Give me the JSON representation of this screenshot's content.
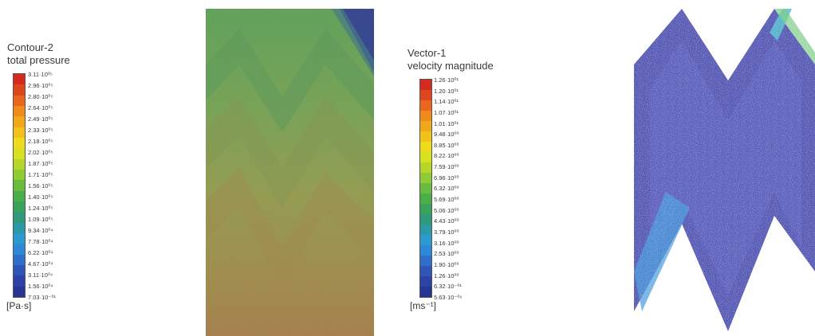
{
  "pressure_legend": {
    "title_line1": "Contour-2",
    "title_line2": "total pressure",
    "unit": "[Pa·s]",
    "ticks": [
      "3.11·10⁰⁵",
      "2.96·10⁰⁵",
      "2.80·10⁰⁵",
      "2.64·10⁰⁵",
      "2.49·10⁰⁵",
      "2.33·10⁰⁵",
      "2.18·10⁰⁵",
      "2.02·10⁰⁵",
      "1.87·10⁰⁵",
      "1.71·10⁰⁵",
      "1.56·10⁰⁵",
      "1.40·10⁰⁵",
      "1.24·10⁰⁵",
      "1.09·10⁰⁵",
      "9.34·10⁰⁴",
      "7.78·10⁰⁴",
      "6.22·10⁰⁴",
      "4.67·10⁰⁴",
      "3.11·10⁰⁴",
      "1.56·10⁰⁴",
      "7.03·10⁻⁰¹"
    ],
    "colors": [
      "#d62a1e",
      "#e0461e",
      "#e9661c",
      "#f08a1a",
      "#f2a61a",
      "#f2c21b",
      "#eedb1d",
      "#d8e11f",
      "#b6d72a",
      "#8fcb34",
      "#69bd3e",
      "#4aaf49",
      "#3aa35a",
      "#2f9a7a",
      "#2a99a8",
      "#2a9ad0",
      "#2c89d8",
      "#2f6fcc",
      "#2f56b8",
      "#2c42a8",
      "#263694"
    ]
  },
  "velocity_legend": {
    "title_line1": "Vector-1",
    "title_line2": "velocity magnitude",
    "unit": "[ms⁻¹]",
    "ticks": [
      "1.26·10⁰¹",
      "1.20·10⁰¹",
      "1.14·10⁰¹",
      "1.07·10⁰¹",
      "1.01·10⁰¹",
      "9.48·10⁰⁰",
      "8.85·10⁰⁰",
      "8.22·10⁰⁰",
      "7.59·10⁰⁰",
      "6.96·10⁰⁰",
      "6.32·10⁰⁰",
      "5.69·10⁰⁰",
      "5.06·10⁰⁰",
      "4.43·10⁰⁰",
      "3.79·10⁰⁰",
      "3.16·10⁰⁰",
      "2.53·10⁰⁰",
      "1.90·10⁰⁰",
      "1.26·10⁰⁰",
      "6.32·10⁻⁰¹",
      "5.63·10⁻⁰⁶"
    ],
    "colors": [
      "#d62a1e",
      "#e0461e",
      "#e9661c",
      "#f08a1a",
      "#f2a61a",
      "#f2c21b",
      "#eedb1d",
      "#d8e11f",
      "#b6d72a",
      "#8fcb34",
      "#69bd3e",
      "#4aaf49",
      "#3aa35a",
      "#2f9a7a",
      "#2a99a8",
      "#2a9ad0",
      "#2c89d8",
      "#2f6fcc",
      "#2f56b8",
      "#2c42a8",
      "#263694"
    ]
  }
}
